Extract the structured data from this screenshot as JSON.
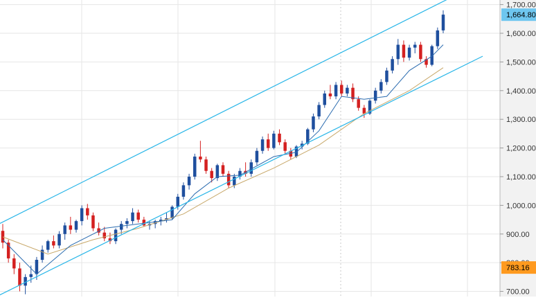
{
  "chart_data": {
    "type": "candlestick",
    "title": "",
    "xlabel": "",
    "ylabel": "",
    "ylim": [
      682,
      1716
    ],
    "y_ticks": [
      {
        "value": 700,
        "label": "700.00"
      },
      {
        "value": 800,
        "label": "800.00"
      },
      {
        "value": 900,
        "label": "900.00"
      },
      {
        "value": 1000,
        "label": "1,000.00"
      },
      {
        "value": 1100,
        "label": "1,100.00"
      },
      {
        "value": 1200,
        "label": "1,200.00"
      },
      {
        "value": 1300,
        "label": "1,300.00"
      },
      {
        "value": 1400,
        "label": "1,400.00"
      },
      {
        "value": 1500,
        "label": "1,500.00"
      },
      {
        "value": 1600,
        "label": "1,600.00"
      },
      {
        "value": 1700,
        "label": "1,700.00"
      }
    ],
    "price_markers": [
      {
        "value": 1664.8,
        "label": "1,664.80",
        "color": "#6ec6ef",
        "text_color": "#000000"
      },
      {
        "value": 783.16,
        "label": "783.16",
        "color": "#ff9a1f",
        "text_color": "#000000"
      }
    ],
    "colors": {
      "up": "#1f4f9e",
      "down": "#d42020",
      "ma_fast": "#2b6cb0",
      "ma_slow": "#c8a86a",
      "channel": "#29b6e8",
      "grid": "#e6e6e6",
      "axis_bg": "#f2f2f2"
    },
    "candles": [
      [
        911,
        935,
        850,
        870
      ],
      [
        870,
        880,
        800,
        815
      ],
      [
        815,
        830,
        760,
        780
      ],
      [
        780,
        800,
        700,
        720
      ],
      [
        720,
        760,
        690,
        750
      ],
      [
        750,
        790,
        730,
        760
      ],
      [
        760,
        820,
        740,
        810
      ],
      [
        810,
        860,
        800,
        845
      ],
      [
        845,
        880,
        835,
        875
      ],
      [
        875,
        895,
        850,
        860
      ],
      [
        860,
        910,
        850,
        900
      ],
      [
        900,
        940,
        880,
        930
      ],
      [
        930,
        960,
        900,
        915
      ],
      [
        915,
        950,
        905,
        945
      ],
      [
        945,
        1000,
        930,
        990
      ],
      [
        990,
        1005,
        950,
        965
      ],
      [
        965,
        975,
        910,
        920
      ],
      [
        920,
        940,
        895,
        905
      ],
      [
        905,
        925,
        875,
        885
      ],
      [
        885,
        905,
        865,
        875
      ],
      [
        875,
        920,
        865,
        915
      ],
      [
        915,
        945,
        900,
        935
      ],
      [
        935,
        955,
        920,
        945
      ],
      [
        945,
        990,
        935,
        975
      ],
      [
        975,
        985,
        940,
        950
      ],
      [
        950,
        960,
        925,
        930
      ],
      [
        930,
        945,
        915,
        935
      ],
      [
        935,
        950,
        920,
        945
      ],
      [
        945,
        960,
        930,
        950
      ],
      [
        950,
        975,
        940,
        955
      ],
      [
        955,
        1000,
        950,
        995
      ],
      [
        995,
        1040,
        985,
        1030
      ],
      [
        1030,
        1080,
        1020,
        1070
      ],
      [
        1070,
        1110,
        1055,
        1100
      ],
      [
        1100,
        1180,
        1090,
        1170
      ],
      [
        1170,
        1225,
        1150,
        1160
      ],
      [
        1160,
        1170,
        1110,
        1120
      ],
      [
        1120,
        1130,
        1080,
        1095
      ],
      [
        1095,
        1145,
        1085,
        1140
      ],
      [
        1140,
        1150,
        1100,
        1110
      ],
      [
        1110,
        1120,
        1060,
        1070
      ],
      [
        1070,
        1110,
        1060,
        1100
      ],
      [
        1100,
        1130,
        1090,
        1120
      ],
      [
        1120,
        1150,
        1100,
        1110
      ],
      [
        1110,
        1160,
        1100,
        1150
      ],
      [
        1150,
        1200,
        1140,
        1190
      ],
      [
        1190,
        1240,
        1180,
        1230
      ],
      [
        1230,
        1250,
        1190,
        1200
      ],
      [
        1200,
        1260,
        1195,
        1250
      ],
      [
        1250,
        1265,
        1210,
        1220
      ],
      [
        1220,
        1230,
        1180,
        1190
      ],
      [
        1190,
        1200,
        1160,
        1170
      ],
      [
        1170,
        1210,
        1165,
        1205
      ],
      [
        1205,
        1225,
        1195,
        1215
      ],
      [
        1215,
        1270,
        1210,
        1265
      ],
      [
        1265,
        1320,
        1255,
        1310
      ],
      [
        1310,
        1360,
        1300,
        1350
      ],
      [
        1350,
        1400,
        1340,
        1390
      ],
      [
        1390,
        1420,
        1370,
        1380
      ],
      [
        1380,
        1430,
        1370,
        1420
      ],
      [
        1420,
        1435,
        1380,
        1390
      ],
      [
        1390,
        1420,
        1380,
        1410
      ],
      [
        1410,
        1425,
        1360,
        1370
      ],
      [
        1370,
        1380,
        1330,
        1340
      ],
      [
        1340,
        1350,
        1305,
        1320
      ],
      [
        1320,
        1370,
        1315,
        1365
      ],
      [
        1365,
        1410,
        1355,
        1400
      ],
      [
        1400,
        1440,
        1390,
        1430
      ],
      [
        1430,
        1480,
        1420,
        1470
      ],
      [
        1470,
        1520,
        1460,
        1510
      ],
      [
        1510,
        1580,
        1490,
        1560
      ],
      [
        1560,
        1575,
        1500,
        1515
      ],
      [
        1515,
        1560,
        1505,
        1550
      ],
      [
        1550,
        1570,
        1530,
        1560
      ],
      [
        1560,
        1570,
        1500,
        1510
      ],
      [
        1510,
        1520,
        1480,
        1490
      ],
      [
        1490,
        1560,
        1485,
        1555
      ],
      [
        1555,
        1620,
        1545,
        1610
      ],
      [
        1610,
        1680,
        1600,
        1665
      ]
    ],
    "ma_fast": [
      [
        0,
        880
      ],
      [
        6,
        760
      ],
      [
        12,
        860
      ],
      [
        18,
        920
      ],
      [
        24,
        935
      ],
      [
        30,
        950
      ],
      [
        34,
        1040
      ],
      [
        38,
        1100
      ],
      [
        42,
        1105
      ],
      [
        48,
        1170
      ],
      [
        52,
        1185
      ],
      [
        56,
        1260
      ],
      [
        60,
        1380
      ],
      [
        64,
        1370
      ],
      [
        68,
        1380
      ],
      [
        72,
        1470
      ],
      [
        76,
        1520
      ],
      [
        78,
        1560
      ]
    ],
    "ma_slow": [
      [
        0,
        890
      ],
      [
        8,
        830
      ],
      [
        16,
        880
      ],
      [
        24,
        920
      ],
      [
        32,
        970
      ],
      [
        40,
        1060
      ],
      [
        48,
        1130
      ],
      [
        56,
        1210
      ],
      [
        64,
        1320
      ],
      [
        72,
        1400
      ],
      [
        78,
        1480
      ]
    ],
    "channel_upper": [
      [
        -1,
        932
      ],
      [
        85,
        1780
      ]
    ],
    "channel_lower": [
      [
        -1,
        683
      ],
      [
        85,
        1520
      ]
    ]
  }
}
